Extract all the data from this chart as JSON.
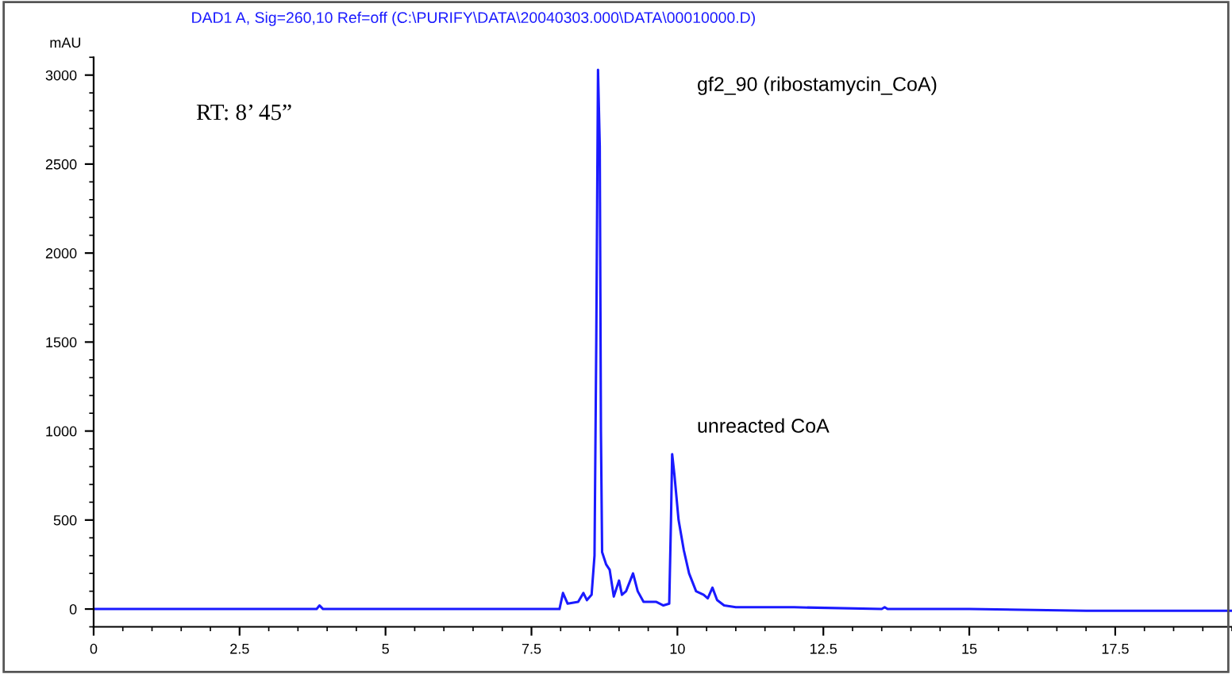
{
  "chart_data": {
    "type": "line",
    "title": "DAD1 A, Sig=260,10 Ref=off (C:\\PURIFY\\DATA\\20040303.000\\DATA\\00010000.D)",
    "ylabel": "mAU",
    "annotations": [
      "RT: 8’ 45”",
      "gf2_90 (ribostamycin_CoA)",
      "unreacted CoA"
    ],
    "series": [
      {
        "color": "#1a1aff",
        "x": [
          0,
          3.82,
          3.87,
          3.93,
          7.98,
          8.04,
          8.12,
          8.3,
          8.39,
          8.45,
          8.53,
          8.58,
          8.61,
          8.64,
          8.67,
          8.69,
          8.71,
          8.78,
          8.84,
          8.91,
          9.0,
          9.05,
          9.12,
          9.24,
          9.32,
          9.42,
          9.64,
          9.76,
          9.86,
          9.89,
          9.91,
          9.95,
          10.02,
          10.11,
          10.2,
          10.32,
          10.45,
          10.52,
          10.6,
          10.68,
          10.8,
          11.0,
          12,
          13.5,
          13.55,
          13.6,
          15,
          17,
          19.5
        ],
        "values": [
          0,
          0,
          20,
          0,
          0,
          90,
          30,
          40,
          90,
          50,
          80,
          300,
          1500,
          3030,
          2600,
          1000,
          320,
          250,
          220,
          70,
          160,
          80,
          100,
          200,
          100,
          40,
          40,
          20,
          30,
          500,
          870,
          750,
          500,
          330,
          200,
          100,
          80,
          60,
          120,
          50,
          20,
          10,
          10,
          0,
          10,
          0,
          0,
          -10,
          -10
        ]
      }
    ],
    "xlim": [
      0,
      19.5
    ],
    "xticks": [
      0,
      2.5,
      5,
      7.5,
      10,
      12.5,
      15,
      17.5
    ],
    "ylim": [
      -100,
      3100
    ],
    "yticks": [
      0,
      500,
      1000,
      1500,
      2000,
      2500,
      3000
    ],
    "grid": false,
    "marker": "none",
    "line_style": "solid"
  }
}
